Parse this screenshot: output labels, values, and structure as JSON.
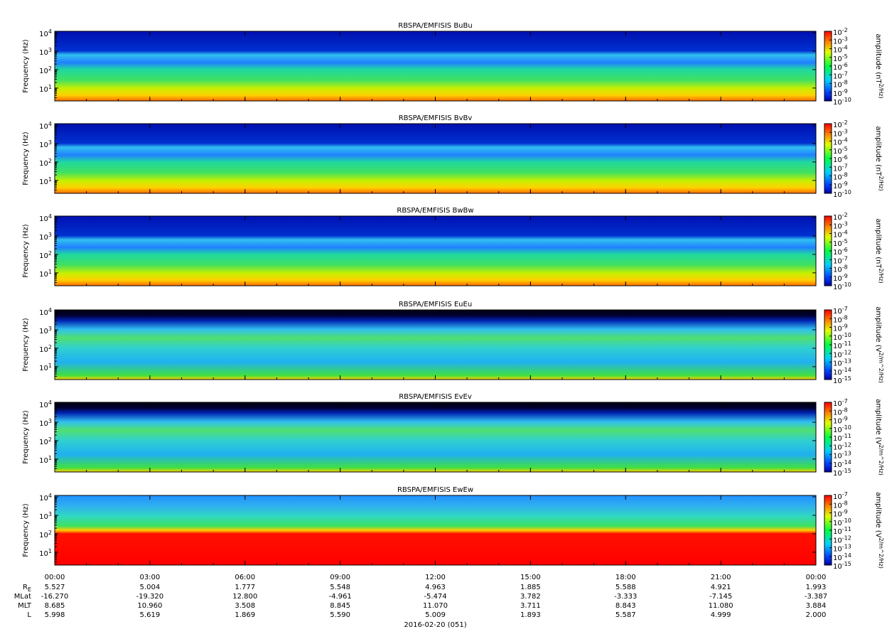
{
  "chart_data": [
    {
      "type": "spectrogram",
      "title": "RBSPA/EMFISIS  BuBu",
      "ylabel": "Frequency (Hz)",
      "ylog": true,
      "ylim": [
        2,
        12000
      ],
      "yticks": [
        {
          "value": 10,
          "label": "10^1"
        },
        {
          "value": 100,
          "label": "10^2"
        },
        {
          "value": 1000,
          "label": "10^3"
        },
        {
          "value": 10000,
          "label": "10^4"
        }
      ],
      "colorbar_label": "amplitude (nT^2/Hz)",
      "clim": [
        1e-10,
        0.01
      ],
      "cticks": [
        {
          "value": 1e-10,
          "label": "10^-10"
        },
        {
          "value": 1e-09,
          "label": "10^-9"
        },
        {
          "value": 1e-08,
          "label": "10^-8"
        },
        {
          "value": 1e-07,
          "label": "10^-7"
        },
        {
          "value": 1e-06,
          "label": "10^-6"
        },
        {
          "value": 1e-05,
          "label": "10^-5"
        },
        {
          "value": 0.0001,
          "label": "10^-4"
        },
        {
          "value": 0.001,
          "label": "10^-3"
        },
        {
          "value": 0.01,
          "label": "10^-2"
        }
      ]
    },
    {
      "type": "spectrogram",
      "title": "RBSPA/EMFISIS  BvBv",
      "ylabel": "Frequency (Hz)",
      "ylog": true,
      "ylim": [
        2,
        12000
      ],
      "yticks": [
        {
          "value": 10,
          "label": "10^1"
        },
        {
          "value": 100,
          "label": "10^2"
        },
        {
          "value": 1000,
          "label": "10^3"
        },
        {
          "value": 10000,
          "label": "10^4"
        }
      ],
      "colorbar_label": "amplitude (nT^2/Hz)",
      "clim": [
        1e-10,
        0.01
      ],
      "cticks": [
        {
          "value": 1e-10,
          "label": "10^-10"
        },
        {
          "value": 1e-09,
          "label": "10^-9"
        },
        {
          "value": 1e-08,
          "label": "10^-8"
        },
        {
          "value": 1e-07,
          "label": "10^-7"
        },
        {
          "value": 1e-06,
          "label": "10^-6"
        },
        {
          "value": 1e-05,
          "label": "10^-5"
        },
        {
          "value": 0.0001,
          "label": "10^-4"
        },
        {
          "value": 0.001,
          "label": "10^-3"
        },
        {
          "value": 0.01,
          "label": "10^-2"
        }
      ]
    },
    {
      "type": "spectrogram",
      "title": "RBSPA/EMFISIS  BwBw",
      "ylabel": "Frequency (Hz)",
      "ylog": true,
      "ylim": [
        2,
        12000
      ],
      "yticks": [
        {
          "value": 10,
          "label": "10^1"
        },
        {
          "value": 100,
          "label": "10^2"
        },
        {
          "value": 1000,
          "label": "10^3"
        },
        {
          "value": 10000,
          "label": "10^4"
        }
      ],
      "colorbar_label": "amplitude (nT^2/Hz)",
      "clim": [
        1e-10,
        0.01
      ],
      "cticks": [
        {
          "value": 1e-10,
          "label": "10^-10"
        },
        {
          "value": 1e-09,
          "label": "10^-9"
        },
        {
          "value": 1e-08,
          "label": "10^-8"
        },
        {
          "value": 1e-07,
          "label": "10^-7"
        },
        {
          "value": 1e-06,
          "label": "10^-6"
        },
        {
          "value": 1e-05,
          "label": "10^-5"
        },
        {
          "value": 0.0001,
          "label": "10^-4"
        },
        {
          "value": 0.001,
          "label": "10^-3"
        },
        {
          "value": 0.01,
          "label": "10^-2"
        }
      ]
    },
    {
      "type": "spectrogram",
      "title": "RBSPA/EMFISIS  EuEu",
      "ylabel": "Frequency (Hz)",
      "ylog": true,
      "ylim": [
        2,
        12000
      ],
      "yticks": [
        {
          "value": 10,
          "label": "10^1"
        },
        {
          "value": 100,
          "label": "10^2"
        },
        {
          "value": 1000,
          "label": "10^3"
        },
        {
          "value": 10000,
          "label": "10^4"
        }
      ],
      "colorbar_label": "amplitude (V^2/m^2/Hz)",
      "clim": [
        1e-15,
        1e-07
      ],
      "cticks": [
        {
          "value": 1e-15,
          "label": "10^-15"
        },
        {
          "value": 1e-14,
          "label": "10^-14"
        },
        {
          "value": 1e-13,
          "label": "10^-13"
        },
        {
          "value": 1e-12,
          "label": "10^-12"
        },
        {
          "value": 1e-11,
          "label": "10^-11"
        },
        {
          "value": 1e-10,
          "label": "10^-10"
        },
        {
          "value": 1e-09,
          "label": "10^-9"
        },
        {
          "value": 1e-08,
          "label": "10^-8"
        },
        {
          "value": 1e-07,
          "label": "10^-7"
        }
      ]
    },
    {
      "type": "spectrogram",
      "title": "RBSPA/EMFISIS  EvEv",
      "ylabel": "Frequency (Hz)",
      "ylog": true,
      "ylim": [
        2,
        12000
      ],
      "yticks": [
        {
          "value": 10,
          "label": "10^1"
        },
        {
          "value": 100,
          "label": "10^2"
        },
        {
          "value": 1000,
          "label": "10^3"
        },
        {
          "value": 10000,
          "label": "10^4"
        }
      ],
      "colorbar_label": "amplitude (V^2/m^2/Hz)",
      "clim": [
        1e-15,
        1e-07
      ],
      "cticks": [
        {
          "value": 1e-15,
          "label": "10^-15"
        },
        {
          "value": 1e-14,
          "label": "10^-14"
        },
        {
          "value": 1e-13,
          "label": "10^-13"
        },
        {
          "value": 1e-12,
          "label": "10^-12"
        },
        {
          "value": 1e-11,
          "label": "10^-11"
        },
        {
          "value": 1e-10,
          "label": "10^-10"
        },
        {
          "value": 1e-09,
          "label": "10^-9"
        },
        {
          "value": 1e-08,
          "label": "10^-8"
        },
        {
          "value": 1e-07,
          "label": "10^-7"
        }
      ]
    },
    {
      "type": "spectrogram",
      "title": "RBSPA/EMFISIS  EwEw",
      "ylabel": "Frequency (Hz)",
      "ylog": true,
      "ylim": [
        2,
        12000
      ],
      "yticks": [
        {
          "value": 10,
          "label": "10^1"
        },
        {
          "value": 100,
          "label": "10^2"
        },
        {
          "value": 1000,
          "label": "10^3"
        },
        {
          "value": 10000,
          "label": "10^4"
        }
      ],
      "colorbar_label": "amplitude (V^2/m^2/Hz)",
      "clim": [
        1e-15,
        1e-07
      ],
      "cticks": [
        {
          "value": 1e-15,
          "label": "10^-15"
        },
        {
          "value": 1e-14,
          "label": "10^-14"
        },
        {
          "value": 1e-13,
          "label": "10^-13"
        },
        {
          "value": 1e-12,
          "label": "10^-12"
        },
        {
          "value": 1e-11,
          "label": "10^-11"
        },
        {
          "value": 1e-10,
          "label": "10^-10"
        },
        {
          "value": 1e-09,
          "label": "10^-9"
        },
        {
          "value": 1e-08,
          "label": "10^-8"
        },
        {
          "value": 1e-07,
          "label": "10^-7"
        }
      ]
    }
  ],
  "x_axis": {
    "xlim": [
      0,
      24
    ],
    "xticks": [
      {
        "value": 0,
        "label": "00:00"
      },
      {
        "value": 3,
        "label": "03:00"
      },
      {
        "value": 6,
        "label": "06:00"
      },
      {
        "value": 9,
        "label": "09:00"
      },
      {
        "value": 12,
        "label": "12:00"
      },
      {
        "value": 15,
        "label": "15:00"
      },
      {
        "value": 18,
        "label": "18:00"
      },
      {
        "value": 21,
        "label": "21:00"
      },
      {
        "value": 24,
        "label": "00:00"
      }
    ],
    "date_label": "2016-02-20 (051)"
  },
  "ephemeris": {
    "rows": [
      {
        "label": "R_E",
        "values": [
          "5.527",
          "5.004",
          "1.777",
          "5.548",
          "4.963",
          "1.885",
          "5.588",
          "4.921",
          "1.993"
        ]
      },
      {
        "label": "MLat",
        "values": [
          "-16.270",
          "-19.320",
          "12.800",
          "-4.961",
          "-5.474",
          "3.782",
          "-3.333",
          "-7.145",
          "-3.387"
        ]
      },
      {
        "label": "MLT",
        "values": [
          "8.685",
          "10.960",
          "3.508",
          "8.845",
          "11.070",
          "3.711",
          "8.843",
          "11.080",
          "3.884"
        ]
      },
      {
        "label": "L",
        "values": [
          "5.998",
          "5.619",
          "1.869",
          "5.590",
          "5.009",
          "1.893",
          "5.587",
          "4.999",
          "2.000"
        ]
      }
    ]
  }
}
